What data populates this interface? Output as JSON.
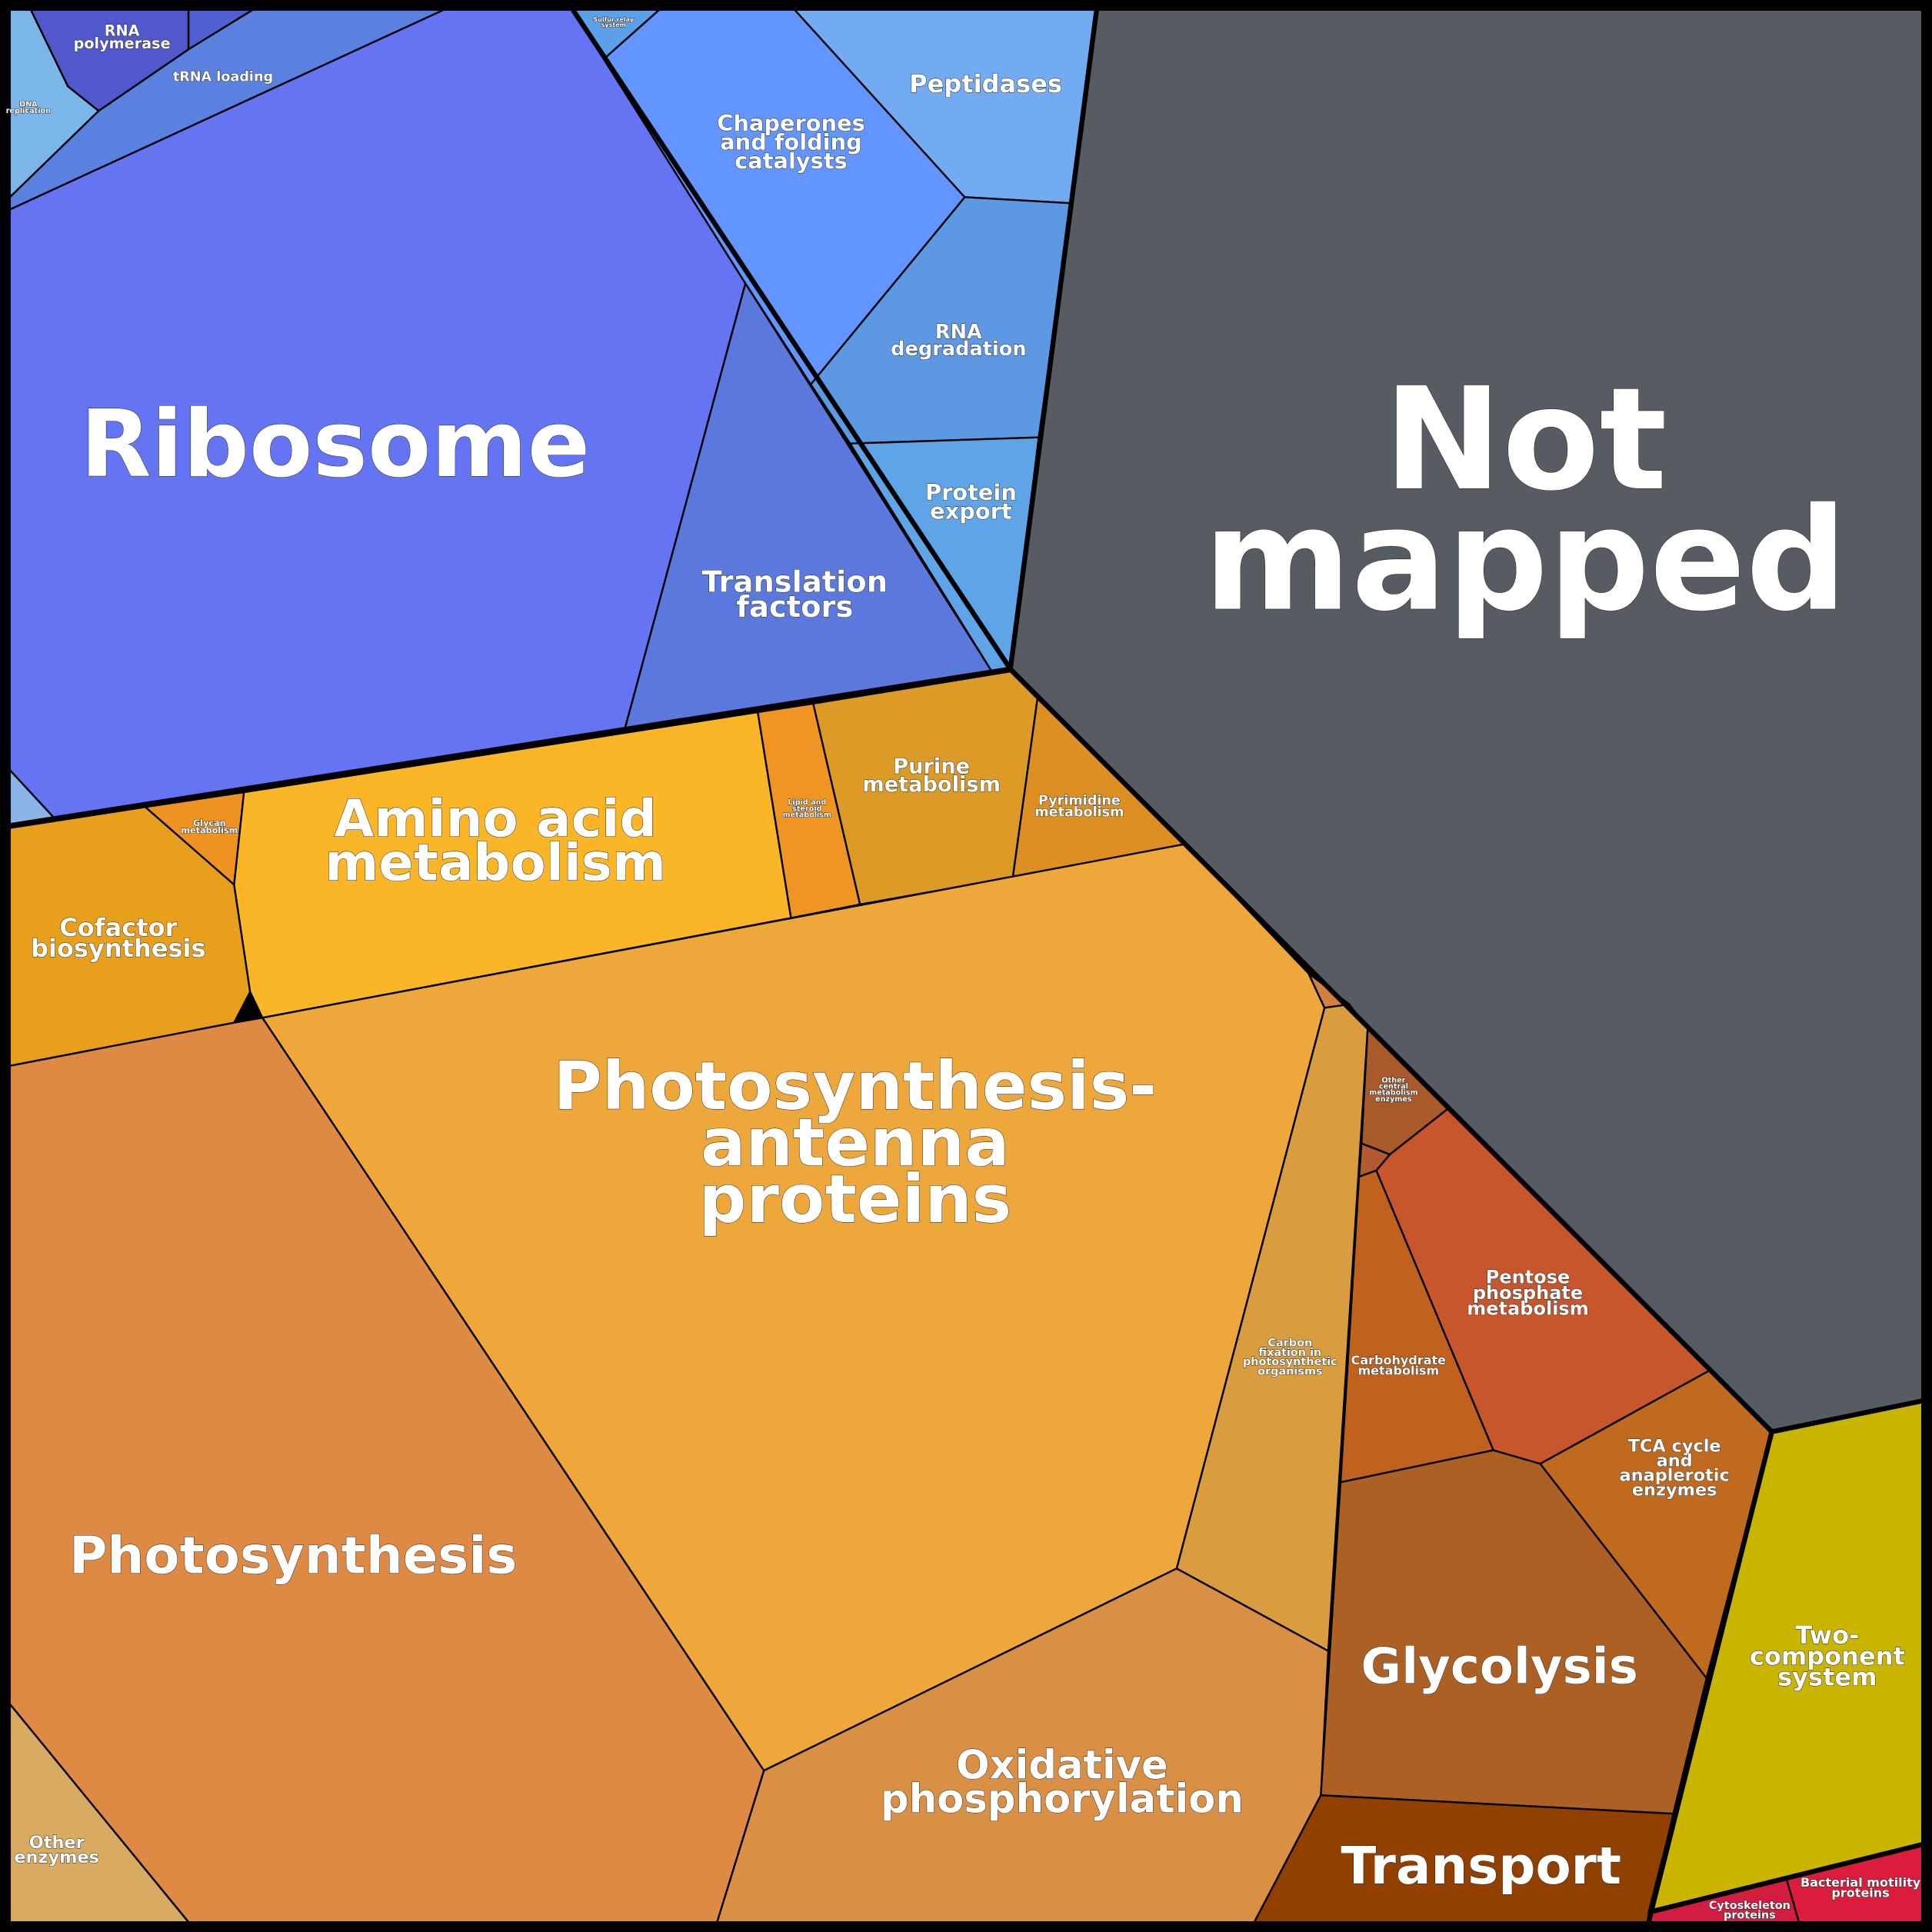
{
  "regions": [
    {
      "label": [
        "Not",
        "mapped"
      ]
    },
    {
      "label": [
        "Ribosome"
      ]
    },
    {
      "label": [
        "Translation",
        "factors"
      ]
    },
    {
      "label": [
        "tRNA loading"
      ]
    },
    {
      "label": [
        "RNA",
        "polymerase"
      ]
    },
    {
      "label": [
        "Chaperones",
        "and folding",
        "catalysts"
      ]
    },
    {
      "label": [
        "Peptidases"
      ]
    },
    {
      "label": [
        "RNA",
        "degradation"
      ]
    },
    {
      "label": [
        "Protein",
        "export"
      ]
    },
    {
      "label": [
        "Amino acid",
        "metabolism"
      ]
    },
    {
      "label": [
        "Cofactor",
        "biosynthesis"
      ]
    },
    {
      "label": [
        "Purine",
        "metabolism"
      ]
    },
    {
      "label": [
        "Pyrimidine",
        "metabolism"
      ]
    },
    {
      "label": [
        "Photosynthesis-",
        "antenna",
        "proteins"
      ]
    },
    {
      "label": [
        "Photosynthesis"
      ]
    },
    {
      "label": [
        "Oxidative",
        "phosphorylation"
      ]
    },
    {
      "label": [
        "Carbon",
        "fixation in",
        "photosynthetic",
        "organisms"
      ]
    },
    {
      "label": [
        "Pentose",
        "phosphate",
        "metabolism"
      ]
    },
    {
      "label": [
        "Carbohydrate",
        "metabolism"
      ]
    },
    {
      "label": [
        "TCA cycle",
        "and",
        "anaplerotic",
        "enzymes"
      ]
    },
    {
      "label": [
        "Glycolysis"
      ]
    },
    {
      "label": [
        "Transport"
      ]
    },
    {
      "label": [
        "Two-",
        "component",
        "system"
      ]
    },
    {
      "label": [
        "Other",
        "enzymes"
      ]
    },
    {
      "label": [
        "Cytoskeleton",
        "proteins"
      ]
    },
    {
      "label": [
        "Bacterial motility",
        "proteins"
      ]
    },
    {
      "label": [
        "Glycan",
        "metabolism"
      ]
    },
    {
      "label": [
        "Lipid and",
        "steroid",
        "metabolism"
      ]
    },
    {
      "label": [
        "Other",
        "central",
        "metabolism",
        "enzymes"
      ]
    },
    {
      "label": [
        "DNA",
        "replication"
      ]
    },
    {
      "label": [
        "Sulfur relay",
        "system"
      ]
    }
  ]
}
